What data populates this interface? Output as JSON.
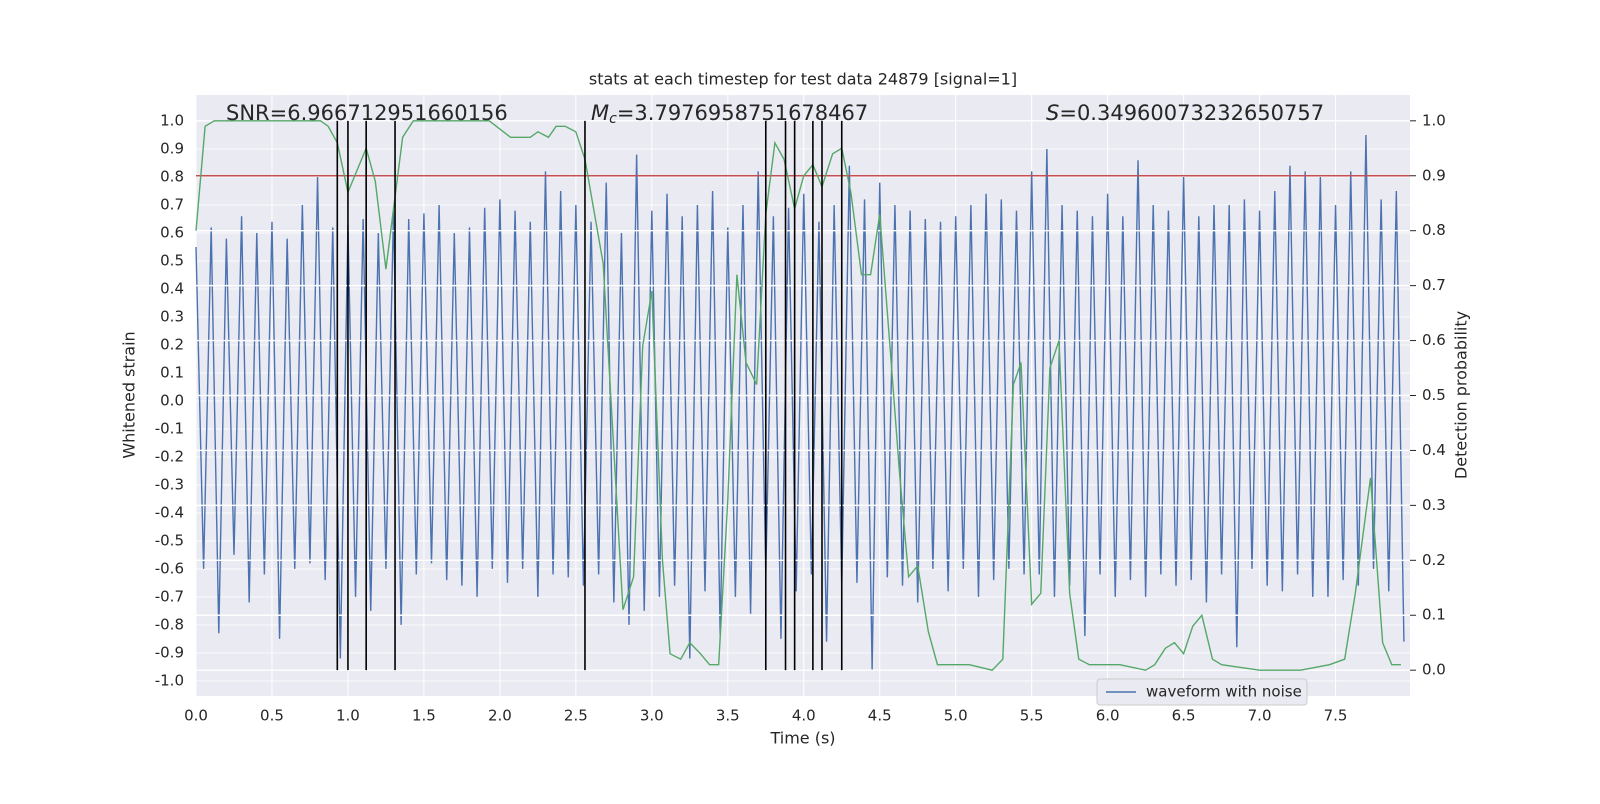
{
  "chart_data": {
    "type": "line",
    "title": "stats at each timestep for test data 24879 [signal=1]",
    "xlabel": "Time (s)",
    "ylabel": "Whitened strain",
    "y2label": "Detection probability",
    "annotations": {
      "snr": "SNR=6.966712951660156",
      "mc": {
        "symbol": "M",
        "subscript": "c",
        "text": "=3.7976958751678467"
      },
      "s": {
        "symbol": "S",
        "text": "=0.34960073232650757"
      }
    },
    "xlim": [
      0,
      7.99
    ],
    "ylim": [
      -1.054,
      1.093
    ],
    "y2lim": [
      -0.047,
      1.047
    ],
    "xticks": [
      {
        "value": 0,
        "label": "0.0"
      },
      0.5,
      {
        "value": 1,
        "label": "1.0"
      },
      1.5,
      {
        "value": 2,
        "label": "2.0"
      },
      2.5,
      {
        "value": 3,
        "label": "3.0"
      },
      3.5,
      {
        "value": 4,
        "label": "4.0"
      },
      4.5,
      {
        "value": 5,
        "label": "5.0"
      },
      5.5,
      {
        "value": 6,
        "label": "6.0"
      },
      6.5,
      {
        "value": 7,
        "label": "7.0"
      },
      7.5
    ],
    "yticks": [
      {
        "value": -1,
        "label": "-1.0"
      },
      -0.9,
      -0.8,
      -0.7,
      -0.6,
      -0.5,
      -0.4,
      -0.3,
      -0.2,
      -0.1,
      {
        "value": 0,
        "label": "0.0"
      },
      0.1,
      0.2,
      0.3,
      0.4,
      0.5,
      0.6,
      0.7,
      0.8,
      0.9,
      {
        "value": 1,
        "label": "1.0"
      }
    ],
    "y2ticks": [
      {
        "value": 0,
        "label": "0.0"
      },
      0.1,
      0.2,
      0.3,
      0.4,
      0.5,
      0.6,
      0.7,
      0.8,
      0.9,
      {
        "value": 1,
        "label": "1.0"
      }
    ],
    "grid": true,
    "series": [
      {
        "name": "waveform with noise",
        "color": "#4c72b0",
        "x": [
          0,
          0.05,
          0.1,
          0.15,
          0.2,
          0.25,
          0.3,
          0.35,
          0.4,
          0.45,
          0.5,
          0.55,
          0.6,
          0.65,
          0.7,
          0.75,
          0.8,
          0.85,
          0.9,
          0.95,
          1,
          1.05,
          1.1,
          1.15,
          1.2,
          1.25,
          1.3,
          1.35,
          1.4,
          1.45,
          1.5,
          1.55,
          1.6,
          1.65,
          1.7,
          1.75,
          1.8,
          1.85,
          1.9,
          1.95,
          2,
          2.05,
          2.1,
          2.15,
          2.2,
          2.25,
          2.3,
          2.35,
          2.4,
          2.45,
          2.5,
          2.55,
          2.6,
          2.65,
          2.7,
          2.75,
          2.8,
          2.85,
          2.9,
          2.95,
          3,
          3.05,
          3.1,
          3.15,
          3.2,
          3.25,
          3.3,
          3.35,
          3.4,
          3.45,
          3.5,
          3.55,
          3.6,
          3.65,
          3.7,
          3.75,
          3.8,
          3.85,
          3.9,
          3.95,
          4,
          4.05,
          4.1,
          4.15,
          4.2,
          4.25,
          4.3,
          4.35,
          4.4,
          4.45,
          4.5,
          4.55,
          4.6,
          4.65,
          4.7,
          4.75,
          4.8,
          4.85,
          4.9,
          4.95,
          5,
          5.05,
          5.1,
          5.15,
          5.2,
          5.25,
          5.3,
          5.35,
          5.4,
          5.45,
          5.5,
          5.55,
          5.6,
          5.65,
          5.7,
          5.75,
          5.8,
          5.85,
          5.9,
          5.95,
          6,
          6.05,
          6.1,
          6.15,
          6.2,
          6.25,
          6.3,
          6.35,
          6.4,
          6.45,
          6.5,
          6.55,
          6.6,
          6.65,
          6.7,
          6.75,
          6.8,
          6.85,
          6.9,
          6.95,
          7,
          7.05,
          7.1,
          7.15,
          7.2,
          7.25,
          7.3,
          7.35,
          7.4,
          7.45,
          7.5,
          7.55,
          7.6,
          7.65,
          7.7,
          7.75,
          7.8,
          7.85,
          7.9,
          7.95
        ],
        "values": [
          0.55,
          -0.6,
          0.62,
          -0.83,
          0.58,
          -0.55,
          0.66,
          -0.72,
          0.6,
          -0.62,
          0.64,
          -0.85,
          0.58,
          -0.6,
          0.7,
          -0.58,
          0.8,
          -0.64,
          0.62,
          -0.92,
          0.63,
          -0.7,
          0.65,
          -0.75,
          0.6,
          -0.6,
          0.68,
          -0.8,
          0.65,
          -0.62,
          0.67,
          -0.58,
          0.7,
          -0.64,
          0.6,
          -0.66,
          0.62,
          -0.7,
          0.69,
          -0.6,
          0.72,
          -0.65,
          0.68,
          -0.6,
          0.64,
          -0.7,
          0.82,
          -0.62,
          0.75,
          -0.63,
          0.7,
          -0.66,
          0.64,
          -0.62,
          0.78,
          -0.72,
          0.6,
          -0.8,
          0.88,
          -0.75,
          0.68,
          -0.7,
          0.74,
          -0.66,
          0.66,
          -0.92,
          0.7,
          -0.68,
          0.75,
          -0.84,
          0.62,
          -0.7,
          0.7,
          -0.76,
          0.82,
          -0.62,
          0.66,
          -0.85,
          0.69,
          -0.68,
          0.74,
          -0.62,
          0.64,
          -0.86,
          0.7,
          -0.66,
          0.84,
          -0.65,
          0.72,
          -0.96,
          0.78,
          -0.63,
          0.7,
          -0.66,
          0.68,
          -0.72,
          0.65,
          -0.6,
          0.64,
          -0.68,
          0.66,
          -0.6,
          0.7,
          -0.7,
          0.74,
          -0.64,
          0.72,
          -0.6,
          0.68,
          -0.62,
          0.82,
          -0.62,
          0.9,
          -0.7,
          0.7,
          -0.66,
          0.68,
          -0.84,
          0.66,
          -0.62,
          0.74,
          -0.7,
          0.66,
          -0.64,
          0.86,
          -0.7,
          0.7,
          -0.62,
          0.68,
          -0.66,
          0.8,
          -0.64,
          0.66,
          -0.72,
          0.7,
          -0.62,
          0.7,
          -0.88,
          0.72,
          -0.6,
          0.68,
          -0.66,
          0.75,
          -0.68,
          0.84,
          -0.62,
          0.82,
          -0.7,
          0.8,
          -0.7,
          0.7,
          -0.64,
          0.82,
          -0.66,
          0.95,
          -0.6,
          0.72,
          -0.68,
          0.75,
          -0.86
        ]
      }
    ],
    "probability": {
      "color": "#55a868",
      "axis": "y2",
      "x": [
        0,
        0.06,
        0.12,
        0.82,
        0.87,
        0.93,
        1.0,
        1.12,
        1.18,
        1.25,
        1.3,
        1.36,
        1.43,
        1.93,
        2.07,
        2.2,
        2.25,
        2.32,
        2.37,
        2.43,
        2.5,
        2.56,
        2.68,
        2.81,
        2.88,
        2.94,
        3.0,
        3.07,
        3.12,
        3.19,
        3.25,
        3.32,
        3.38,
        3.44,
        3.5,
        3.56,
        3.62,
        3.69,
        3.75,
        3.81,
        3.87,
        3.94,
        4.0,
        4.06,
        4.12,
        4.19,
        4.25,
        4.31,
        4.38,
        4.44,
        4.5,
        4.57,
        4.63,
        4.69,
        4.75,
        4.82,
        4.88,
        4.94,
        5.09,
        5.24,
        5.31,
        5.38,
        5.43,
        5.5,
        5.56,
        5.62,
        5.68,
        5.75,
        5.81,
        5.88,
        6.08,
        6.25,
        6.31,
        6.38,
        6.44,
        6.5,
        6.56,
        6.62,
        6.69,
        6.75,
        7.0,
        7.27,
        7.46,
        7.56,
        7.63,
        7.73,
        7.81,
        7.87,
        7.93
      ],
      "values": [
        0.8,
        0.99,
        1.0,
        1.0,
        0.99,
        0.96,
        0.87,
        0.95,
        0.89,
        0.73,
        0.84,
        0.97,
        1.0,
        1.0,
        0.97,
        0.97,
        0.98,
        0.97,
        0.99,
        0.99,
        0.98,
        0.93,
        0.74,
        0.11,
        0.17,
        0.59,
        0.69,
        0.2,
        0.03,
        0.02,
        0.05,
        0.03,
        0.01,
        0.01,
        0.31,
        0.72,
        0.56,
        0.52,
        0.83,
        0.96,
        0.93,
        0.84,
        0.9,
        0.92,
        0.88,
        0.94,
        0.95,
        0.87,
        0.72,
        0.72,
        0.83,
        0.58,
        0.36,
        0.17,
        0.19,
        0.07,
        0.01,
        0.01,
        0.01,
        0.0,
        0.02,
        0.52,
        0.56,
        0.12,
        0.14,
        0.55,
        0.6,
        0.14,
        0.02,
        0.01,
        0.01,
        0.0,
        0.01,
        0.04,
        0.05,
        0.03,
        0.08,
        0.1,
        0.02,
        0.01,
        0.0,
        0.0,
        0.01,
        0.02,
        0.14,
        0.35,
        0.05,
        0.01,
        0.01
      ]
    },
    "vlines": {
      "color": "#000000",
      "axis": "y2",
      "ymin": 0,
      "ymax": 1,
      "x": [
        0.93,
        1.0,
        1.12,
        1.31,
        2.56,
        3.75,
        3.88,
        3.94,
        4.06,
        4.12,
        4.25
      ]
    },
    "hline": {
      "color": "#c44e52",
      "axis": "y2",
      "value": 0.9
    }
  }
}
